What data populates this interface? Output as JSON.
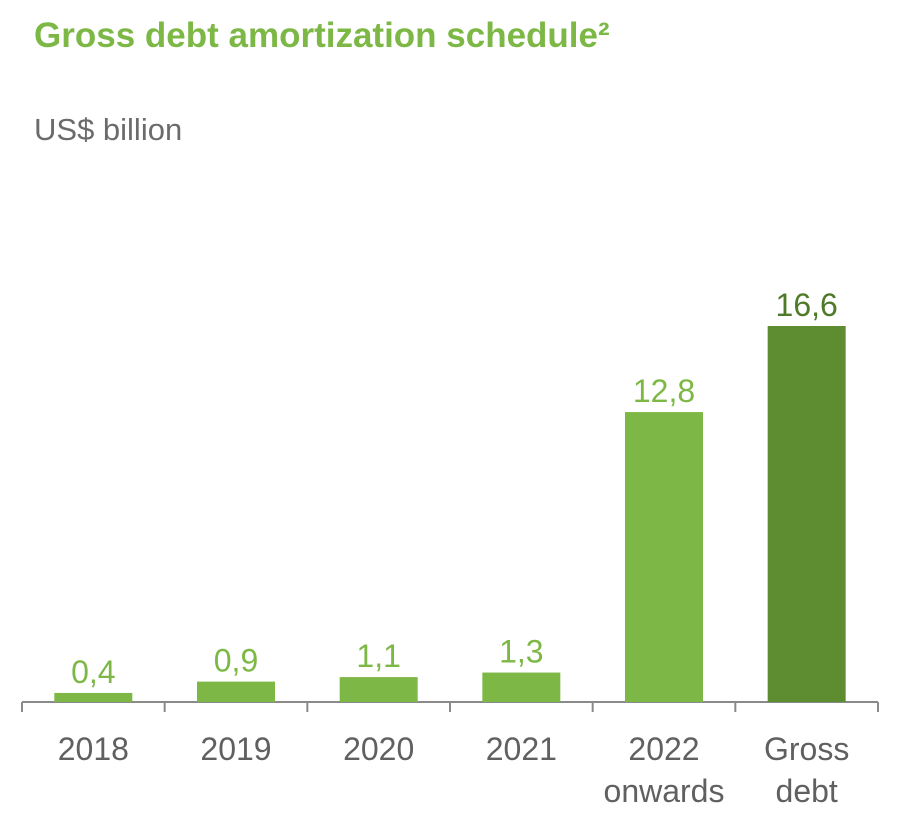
{
  "title": "Gross debt amortization schedule²",
  "subtitle": "US$ billion",
  "colors": {
    "title": "#7db846",
    "subtitle": "#6b6b6b",
    "bar": "#7db846",
    "bar_total": "#5e8c31",
    "label": "#7db846",
    "label_total": "#4f7a28",
    "axis": "#8a8a8a",
    "tick_text": "#606060"
  },
  "chart_data": {
    "type": "bar",
    "categories": [
      [
        "2018"
      ],
      [
        "2019"
      ],
      [
        "2020"
      ],
      [
        "2021"
      ],
      [
        "2022",
        "onwards"
      ],
      [
        "Gross",
        "debt"
      ]
    ],
    "values": [
      0.4,
      0.9,
      1.1,
      1.3,
      12.8,
      16.6
    ],
    "value_labels": [
      "0,4",
      "0,9",
      "1,1",
      "1,3",
      "12,8",
      "16,6"
    ],
    "highlight_index": 5,
    "ylim": [
      0,
      16.6
    ],
    "grid": false,
    "xlabel": "",
    "ylabel": ""
  }
}
